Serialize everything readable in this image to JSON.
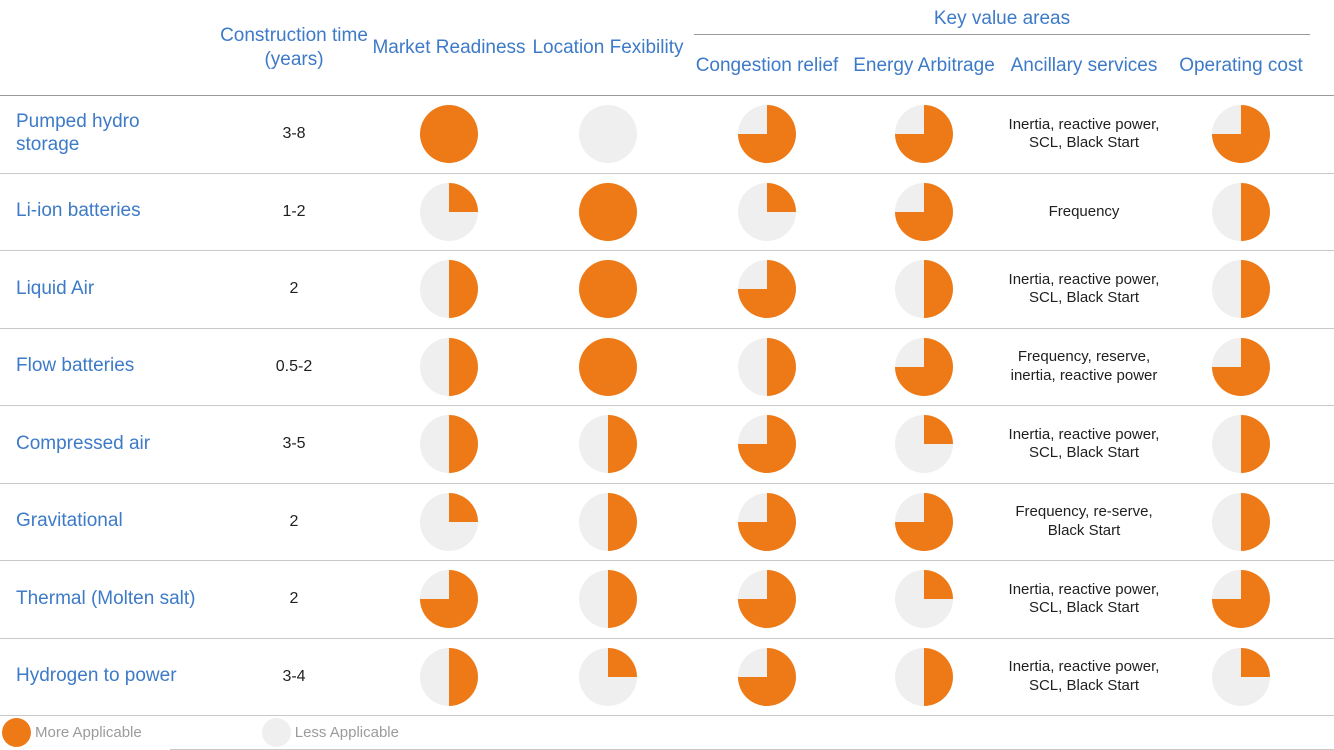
{
  "header": {
    "row_label": "",
    "construction_time": "Construction time (years)",
    "market_readiness": "Market Readiness",
    "location_flexibility": "Location Fexibility",
    "key_value_areas": "Key value areas",
    "congestion_relief": "Congestion relief",
    "energy_arbitrage": "Energy Arbitrage",
    "ancillary_services": "Ancillary services",
    "operating_cost": "Operating cost"
  },
  "legend": {
    "more_label": "More Applicable",
    "less_label": "Less Applicable"
  },
  "colors": {
    "more_applicable": "#ee7a17",
    "less_applicable": "#efefef",
    "header_blue": "#3d7ac7"
  },
  "rows": [
    {
      "name": "Pumped hydro storage",
      "construction_time": "3-8",
      "market_readiness": 100,
      "location_flexibility": 0,
      "congestion_relief": 75,
      "energy_arbitrage": 75,
      "ancillary_services": "Inertia, reactive power, SCL, Black Start",
      "operating_cost": 75
    },
    {
      "name": "Li-ion batteries",
      "construction_time": "1-2",
      "market_readiness": 25,
      "location_flexibility": 100,
      "congestion_relief": 25,
      "energy_arbitrage": 75,
      "ancillary_services": "Frequency",
      "operating_cost": 50
    },
    {
      "name": "Liquid Air",
      "construction_time": "2",
      "market_readiness": 50,
      "location_flexibility": 100,
      "congestion_relief": 75,
      "energy_arbitrage": 50,
      "ancillary_services": "Inertia, reactive power, SCL, Black Start",
      "operating_cost": 50
    },
    {
      "name": "Flow batteries",
      "construction_time": "0.5-2",
      "market_readiness": 50,
      "location_flexibility": 100,
      "congestion_relief": 50,
      "energy_arbitrage": 75,
      "ancillary_services": "Frequency, reserve, inertia, reactive power",
      "operating_cost": 75
    },
    {
      "name": "Compressed air",
      "construction_time": "3-5",
      "market_readiness": 50,
      "location_flexibility": 50,
      "congestion_relief": 75,
      "energy_arbitrage": 25,
      "ancillary_services": "Inertia, reactive power, SCL, Black Start",
      "operating_cost": 50
    },
    {
      "name": "Gravitational",
      "construction_time": "2",
      "market_readiness": 25,
      "location_flexibility": 50,
      "congestion_relief": 75,
      "energy_arbitrage": 75,
      "ancillary_services": "Frequency, re-serve, Black Start",
      "operating_cost": 50
    },
    {
      "name": "Thermal (Molten salt)",
      "construction_time": "2",
      "market_readiness": 75,
      "location_flexibility": 50,
      "congestion_relief": 75,
      "energy_arbitrage": 25,
      "ancillary_services": "Inertia, reactive power, SCL, Black Start",
      "operating_cost": 75
    },
    {
      "name": "Hydrogen to power",
      "construction_time": "3-4",
      "market_readiness": 50,
      "location_flexibility": 25,
      "congestion_relief": 75,
      "energy_arbitrage": 50,
      "ancillary_services": "Inertia, reactive power, SCL, Black Start",
      "operating_cost": 25
    }
  ],
  "chart_data": {
    "type": "table",
    "title": "",
    "legend_position": "bottom",
    "legend": {
      "full_or_partial_orange": "More Applicable",
      "gray": "Less Applicable"
    },
    "value_scale": "percent applicable (harvey-ball pies: 0, 25, 50, 75, 100)",
    "columns": [
      "Technology",
      "Construction time (years)",
      "Market Readiness",
      "Location Fexibility",
      "Congestion relief",
      "Energy Arbitrage",
      "Ancillary services",
      "Operating cost"
    ],
    "column_groups": [
      {
        "label": "Key value areas",
        "columns": [
          "Congestion relief",
          "Energy Arbitrage",
          "Ancillary services",
          "Operating cost"
        ]
      }
    ],
    "rows": [
      [
        "Pumped hydro storage",
        "3-8",
        100,
        0,
        75,
        75,
        "Inertia, reactive power, SCL, Black Start",
        75
      ],
      [
        "Li-ion batteries",
        "1-2",
        25,
        100,
        25,
        75,
        "Frequency",
        50
      ],
      [
        "Liquid Air",
        "2",
        50,
        100,
        75,
        50,
        "Inertia, reactive power, SCL, Black Start",
        50
      ],
      [
        "Flow batteries",
        "0.5-2",
        50,
        100,
        50,
        75,
        "Frequency, reserve, inertia, reactive power",
        75
      ],
      [
        "Compressed air",
        "3-5",
        50,
        50,
        75,
        25,
        "Inertia, reactive power, SCL, Black Start",
        50
      ],
      [
        "Gravitational",
        "2",
        25,
        50,
        75,
        75,
        "Frequency, re-serve, Black Start",
        50
      ],
      [
        "Thermal (Molten salt)",
        "2",
        75,
        50,
        75,
        25,
        "Inertia, reactive power, SCL, Black Start",
        75
      ],
      [
        "Hydrogen to power",
        "3-4",
        50,
        25,
        75,
        50,
        "Inertia, reactive power, SCL, Black Start",
        25
      ]
    ]
  }
}
